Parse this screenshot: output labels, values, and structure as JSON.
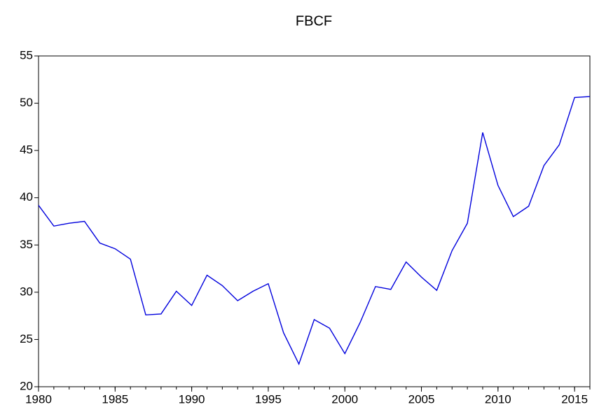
{
  "chart_data": {
    "type": "line",
    "title": "FBCF",
    "x": [
      1980,
      1981,
      1982,
      1983,
      1984,
      1985,
      1986,
      1987,
      1988,
      1989,
      1990,
      1991,
      1992,
      1993,
      1994,
      1995,
      1996,
      1997,
      1998,
      1999,
      2000,
      2001,
      2002,
      2003,
      2004,
      2005,
      2006,
      2007,
      2008,
      2009,
      2010,
      2011,
      2012,
      2013,
      2014,
      2015,
      2016
    ],
    "series": [
      {
        "name": "FBCF",
        "color": "#0000dd",
        "values": [
          39.2,
          37.0,
          37.3,
          37.5,
          35.2,
          34.6,
          33.5,
          27.6,
          27.7,
          30.1,
          28.6,
          31.8,
          30.7,
          29.1,
          30.1,
          30.9,
          25.7,
          22.4,
          27.1,
          26.2,
          23.5,
          26.8,
          30.6,
          30.3,
          33.2,
          31.6,
          30.2,
          34.4,
          37.3,
          46.9,
          41.3,
          38.0,
          39.1,
          43.4,
          45.6,
          50.6,
          50.7
        ]
      }
    ],
    "xlim": [
      1980,
      2016
    ],
    "xticks": [
      1980,
      1985,
      1990,
      1995,
      2000,
      2005,
      2010,
      2015
    ],
    "ylim": [
      20,
      55
    ],
    "yticks": [
      20,
      25,
      30,
      35,
      40,
      45,
      50,
      55
    ]
  }
}
